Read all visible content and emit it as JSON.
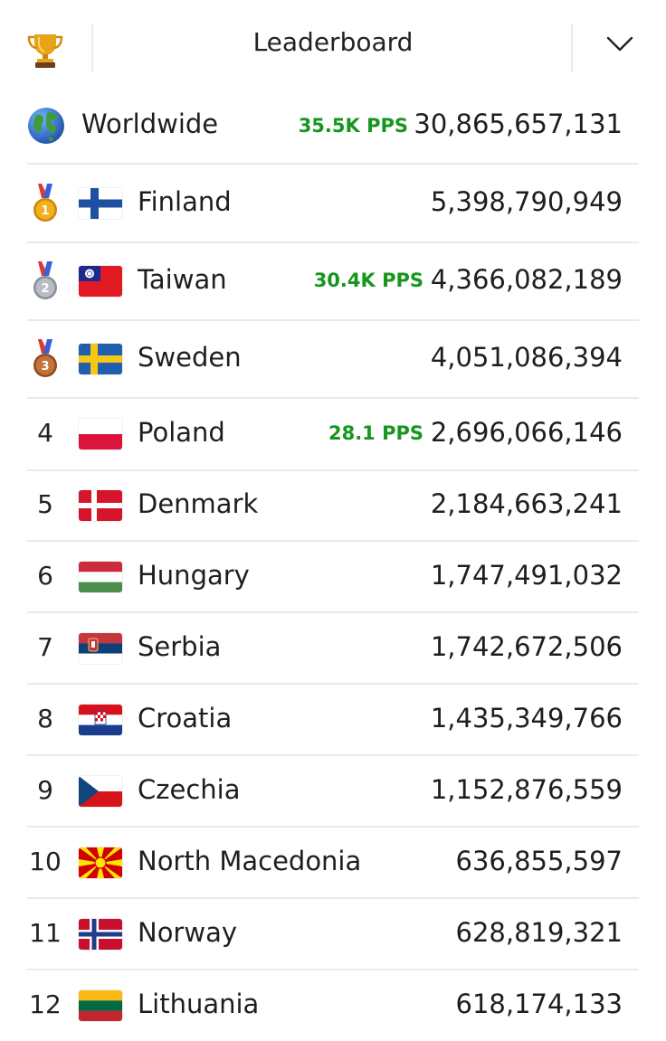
{
  "header": {
    "title": "Leaderboard",
    "left_icon": "trophy-icon",
    "right_icon": "chevron-down-icon"
  },
  "colors": {
    "pps_green": "#16961e",
    "divider": "#eaeaea"
  },
  "worldwide": {
    "label": "Worldwide",
    "icon": "globe-icon",
    "pps": "35.5K PPS",
    "value": "30,865,657,131"
  },
  "rows": [
    {
      "rank": "",
      "medal": "gold",
      "flag": "finland",
      "country": "Finland",
      "pps": "",
      "value": "5,398,790,949"
    },
    {
      "rank": "",
      "medal": "silver",
      "flag": "taiwan",
      "country": "Taiwan",
      "pps": "30.4K PPS",
      "value": "4,366,082,189"
    },
    {
      "rank": "",
      "medal": "bronze",
      "flag": "sweden",
      "country": "Sweden",
      "pps": "",
      "value": "4,051,086,394"
    },
    {
      "rank": "4",
      "medal": "",
      "flag": "poland",
      "country": "Poland",
      "pps": "28.1 PPS",
      "value": "2,696,066,146"
    },
    {
      "rank": "5",
      "medal": "",
      "flag": "denmark",
      "country": "Denmark",
      "pps": "",
      "value": "2,184,663,241"
    },
    {
      "rank": "6",
      "medal": "",
      "flag": "hungary",
      "country": "Hungary",
      "pps": "",
      "value": "1,747,491,032"
    },
    {
      "rank": "7",
      "medal": "",
      "flag": "serbia",
      "country": "Serbia",
      "pps": "",
      "value": "1,742,672,506"
    },
    {
      "rank": "8",
      "medal": "",
      "flag": "croatia",
      "country": "Croatia",
      "pps": "",
      "value": "1,435,349,766"
    },
    {
      "rank": "9",
      "medal": "",
      "flag": "czechia",
      "country": "Czechia",
      "pps": "",
      "value": "1,152,876,559"
    },
    {
      "rank": "10",
      "medal": "",
      "flag": "north-macedonia",
      "country": "North Macedonia",
      "pps": "",
      "value": "636,855,597"
    },
    {
      "rank": "11",
      "medal": "",
      "flag": "norway",
      "country": "Norway",
      "pps": "",
      "value": "628,819,321"
    },
    {
      "rank": "12",
      "medal": "",
      "flag": "lithuania",
      "country": "Lithuania",
      "pps": "",
      "value": "618,174,133"
    }
  ]
}
